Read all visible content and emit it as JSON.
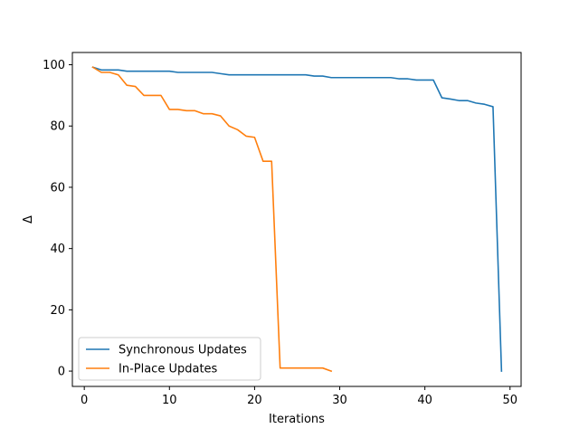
{
  "chart_data": {
    "type": "line",
    "title": "",
    "xlabel": "Iterations",
    "ylabel": "Δ",
    "xlim": [
      -1.4,
      51.3
    ],
    "ylim": [
      -5,
      104
    ],
    "xticks": [
      0,
      10,
      20,
      30,
      40,
      50
    ],
    "yticks": [
      0,
      20,
      40,
      60,
      80,
      100
    ],
    "grid": false,
    "legend_position": "lower-left",
    "series": [
      {
        "name": "Synchronous Updates",
        "color": "#1f77b4",
        "x": [
          1,
          2,
          3,
          4,
          5,
          6,
          7,
          8,
          9,
          10,
          11,
          12,
          13,
          14,
          15,
          16,
          17,
          18,
          19,
          20,
          21,
          22,
          23,
          24,
          25,
          26,
          27,
          28,
          29,
          30,
          31,
          32,
          33,
          34,
          35,
          36,
          37,
          38,
          39,
          40,
          41,
          42,
          43,
          44,
          45,
          46,
          47,
          48,
          49
        ],
        "y": [
          99.2,
          98.3,
          98.3,
          98.3,
          97.9,
          97.9,
          97.9,
          97.9,
          97.9,
          97.9,
          97.5,
          97.5,
          97.5,
          97.5,
          97.5,
          97.1,
          96.7,
          96.7,
          96.7,
          96.7,
          96.7,
          96.7,
          96.7,
          96.7,
          96.7,
          96.7,
          96.3,
          96.3,
          95.8,
          95.8,
          95.8,
          95.8,
          95.8,
          95.8,
          95.8,
          95.8,
          95.4,
          95.4,
          95.0,
          95.0,
          95.0,
          89.2,
          88.8,
          88.3,
          88.3,
          87.5,
          87.1,
          86.3,
          0.0
        ]
      },
      {
        "name": "In-Place Updates",
        "color": "#ff7f0e",
        "x": [
          1,
          2,
          3,
          4,
          5,
          6,
          7,
          8,
          9,
          10,
          11,
          12,
          13,
          14,
          15,
          16,
          17,
          18,
          19,
          20,
          21,
          22,
          23,
          24,
          25,
          26,
          27,
          28,
          29
        ],
        "y": [
          99.2,
          97.5,
          97.5,
          96.7,
          93.3,
          92.9,
          90.0,
          90.0,
          90.0,
          85.4,
          85.4,
          85.0,
          85.0,
          84.0,
          84.0,
          83.3,
          80.0,
          78.8,
          76.7,
          76.3,
          68.5,
          68.5,
          1.0,
          1.0,
          1.0,
          1.0,
          1.0,
          1.0,
          0.0
        ]
      }
    ]
  }
}
